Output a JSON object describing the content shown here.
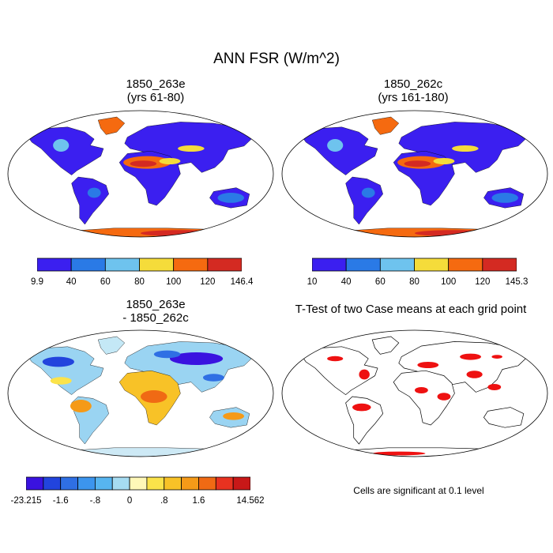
{
  "figure": {
    "title": "ANN FSR (W/m^2)"
  },
  "panels": [
    {
      "title_line1": "1850_263e",
      "title_line2": "(yrs 61-80)",
      "colorbar": {
        "colors": [
          "#3b1ff0",
          "#2a7ae6",
          "#6ec3ee",
          "#f5dc3a",
          "#f56a10",
          "#d42a22"
        ],
        "labels": [
          "9.9",
          "40",
          "60",
          "80",
          "100",
          "120",
          "146.4"
        ]
      }
    },
    {
      "title_line1": "1850_262c",
      "title_line2": "(yrs 161-180)",
      "colorbar": {
        "colors": [
          "#3b1ff0",
          "#2a7ae6",
          "#6ec3ee",
          "#f5dc3a",
          "#f56a10",
          "#d42a22"
        ],
        "labels": [
          "10",
          "40",
          "60",
          "80",
          "100",
          "120",
          "145.3"
        ]
      }
    },
    {
      "title_line1": "1850_263e",
      "title_line2": "- 1850_262c",
      "colorbar": {
        "colors": [
          "#3a12e0",
          "#2244dd",
          "#2f6fe4",
          "#3c95ee",
          "#57b5f0",
          "#a6dcf2",
          "#fff8b8",
          "#fbe34a",
          "#f8c227",
          "#f59a18",
          "#f06a14",
          "#e83220",
          "#c81818"
        ],
        "labels": [
          "-23.215",
          "-1.6",
          "-.8",
          "0",
          ".8",
          "1.6",
          "14.562"
        ],
        "label_at": [
          0,
          2,
          4,
          6,
          8,
          10,
          13
        ]
      }
    },
    {
      "title_line1": "T-Test of two Case means at each grid point",
      "note": "Cells are significant at 0.1 level",
      "marker_color": "#ee1111"
    }
  ]
}
